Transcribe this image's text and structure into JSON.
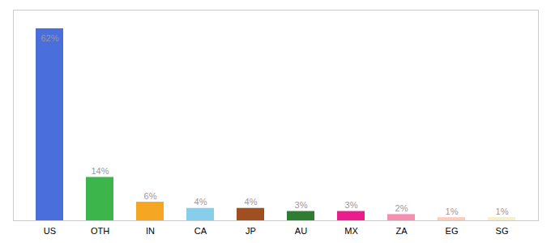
{
  "chart_data": {
    "type": "bar",
    "categories": [
      "US",
      "OTH",
      "IN",
      "CA",
      "JP",
      "AU",
      "MX",
      "ZA",
      "EG",
      "SG"
    ],
    "values": [
      62,
      14,
      6,
      4,
      4,
      3,
      3,
      2,
      1,
      1
    ],
    "colors": [
      "#4a6fdc",
      "#3cb54a",
      "#f5a623",
      "#87ceeb",
      "#a05020",
      "#2e7d32",
      "#e91e8c",
      "#f48fb1",
      "#ffccbc",
      "#f5f0c8"
    ],
    "ylim": [
      0,
      68
    ],
    "data_labels": true,
    "value_labels": [
      "62%",
      "14%",
      "6%",
      "4%",
      "4%",
      "3%",
      "3%",
      "2%",
      "1%",
      "1%"
    ],
    "tick_labels": "x",
    "grid": false
  }
}
